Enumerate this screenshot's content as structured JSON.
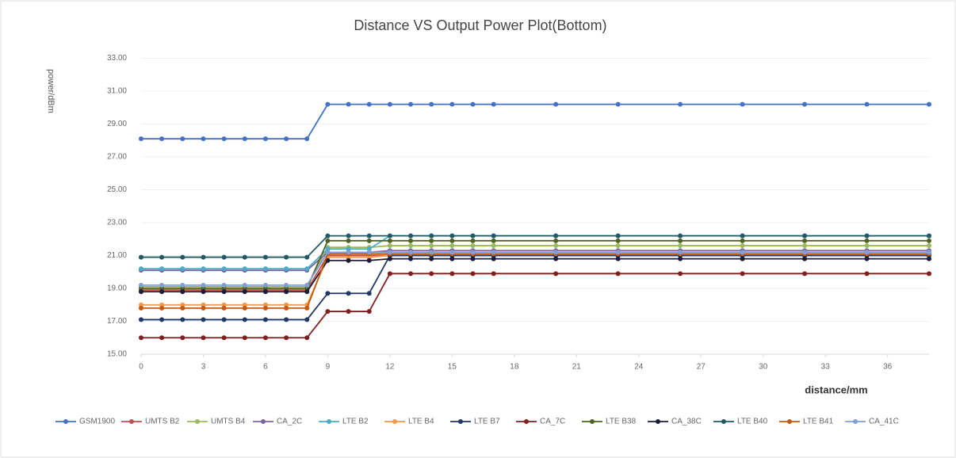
{
  "chart_data": {
    "type": "line",
    "title": "Distance VS Output Power Plot(Bottom)",
    "xlabel": "distance/mm",
    "ylabel": "power/dBm",
    "x": [
      0,
      1,
      2,
      3,
      4,
      5,
      6,
      7,
      8,
      9,
      10,
      11,
      12,
      13,
      14,
      15,
      16,
      17,
      20,
      23,
      26,
      29,
      32,
      35,
      38
    ],
    "xlim": [
      0,
      38
    ],
    "xticks": [
      0,
      3,
      6,
      9,
      12,
      15,
      18,
      21,
      24,
      27,
      30,
      33,
      36
    ],
    "ylim": [
      15,
      33
    ],
    "yticks": [
      {
        "value": 15,
        "label": "15.00"
      },
      {
        "value": 17,
        "label": "17.00"
      },
      {
        "value": 19,
        "label": "19.00"
      },
      {
        "value": 21,
        "label": "21.00"
      },
      {
        "value": 23,
        "label": "23.00"
      },
      {
        "value": 25,
        "label": "25.00"
      },
      {
        "value": 27,
        "label": "27.00"
      },
      {
        "value": 29,
        "label": "29.00"
      },
      {
        "value": 31,
        "label": "31.00"
      },
      {
        "value": 33,
        "label": "33.00"
      }
    ],
    "grid": true,
    "legend": "bottom",
    "series": [
      {
        "name": "GSM1900",
        "color": "#4472c4",
        "values": [
          28.1,
          28.1,
          28.1,
          28.1,
          28.1,
          28.1,
          28.1,
          28.1,
          28.1,
          30.2,
          30.2,
          30.2,
          30.2,
          30.2,
          30.2,
          30.2,
          30.2,
          30.2,
          30.2,
          30.2,
          30.2,
          30.2,
          30.2,
          30.2,
          30.2
        ]
      },
      {
        "name": "UMTS B2",
        "color": "#c0504d",
        "values": [
          18.9,
          18.9,
          18.9,
          18.9,
          18.9,
          18.9,
          18.9,
          18.9,
          18.9,
          21.0,
          21.0,
          21.0,
          21.0,
          21.0,
          21.0,
          21.0,
          21.0,
          21.0,
          21.0,
          21.0,
          21.0,
          21.0,
          21.0,
          21.0,
          21.0
        ]
      },
      {
        "name": "UMTS B4",
        "color": "#9bbb59",
        "values": [
          19.1,
          19.1,
          19.1,
          19.1,
          19.1,
          19.1,
          19.1,
          19.1,
          19.1,
          21.5,
          21.5,
          21.5,
          21.6,
          21.6,
          21.6,
          21.6,
          21.6,
          21.6,
          21.6,
          21.6,
          21.6,
          21.6,
          21.6,
          21.6,
          21.6
        ]
      },
      {
        "name": "CA_2C",
        "color": "#8064a2",
        "values": [
          20.1,
          20.1,
          20.1,
          20.1,
          20.1,
          20.1,
          20.1,
          20.1,
          20.1,
          21.2,
          21.2,
          21.2,
          21.3,
          21.3,
          21.3,
          21.3,
          21.3,
          21.3,
          21.3,
          21.3,
          21.3,
          21.3,
          21.3,
          21.3,
          21.3
        ]
      },
      {
        "name": "LTE B2",
        "color": "#4bacc6",
        "values": [
          20.2,
          20.2,
          20.2,
          20.2,
          20.2,
          20.2,
          20.2,
          20.2,
          20.2,
          21.4,
          21.4,
          21.4,
          22.2,
          22.2,
          22.2,
          22.2,
          22.2,
          22.2,
          22.2,
          22.2,
          22.2,
          22.2,
          22.2,
          22.2,
          22.2
        ]
      },
      {
        "name": "LTE B4",
        "color": "#f79646",
        "values": [
          18.0,
          18.0,
          18.0,
          18.0,
          18.0,
          18.0,
          18.0,
          18.0,
          18.0,
          20.9,
          20.9,
          20.9,
          21.0,
          21.0,
          21.0,
          21.0,
          21.0,
          21.0,
          21.0,
          21.0,
          21.0,
          21.0,
          21.0,
          21.0,
          21.0
        ]
      },
      {
        "name": "LTE B7",
        "color": "#1f3864",
        "values": [
          17.1,
          17.1,
          17.1,
          17.1,
          17.1,
          17.1,
          17.1,
          17.1,
          17.1,
          18.7,
          18.7,
          18.7,
          21.0,
          21.0,
          21.0,
          21.0,
          21.0,
          21.0,
          21.0,
          21.0,
          21.0,
          21.0,
          21.0,
          21.0,
          21.0
        ]
      },
      {
        "name": "CA_7C",
        "color": "#7f1f1f",
        "values": [
          16.0,
          16.0,
          16.0,
          16.0,
          16.0,
          16.0,
          16.0,
          16.0,
          16.0,
          17.6,
          17.6,
          17.6,
          19.9,
          19.9,
          19.9,
          19.9,
          19.9,
          19.9,
          19.9,
          19.9,
          19.9,
          19.9,
          19.9,
          19.9,
          19.9
        ]
      },
      {
        "name": "LTE B38",
        "color": "#4f6228",
        "values": [
          19.0,
          19.0,
          19.0,
          19.0,
          19.0,
          19.0,
          19.0,
          19.0,
          19.0,
          21.9,
          21.9,
          21.9,
          21.9,
          21.9,
          21.9,
          21.9,
          21.9,
          21.9,
          21.9,
          21.9,
          21.9,
          21.9,
          21.9,
          21.9,
          21.9
        ]
      },
      {
        "name": "CA_38C",
        "color": "#1d1d3a",
        "values": [
          18.8,
          18.8,
          18.8,
          18.8,
          18.8,
          18.8,
          18.8,
          18.8,
          18.8,
          20.7,
          20.7,
          20.7,
          20.8,
          20.8,
          20.8,
          20.8,
          20.8,
          20.8,
          20.8,
          20.8,
          20.8,
          20.8,
          20.8,
          20.8,
          20.8
        ]
      },
      {
        "name": "LTE B40",
        "color": "#215967",
        "values": [
          20.9,
          20.9,
          20.9,
          20.9,
          20.9,
          20.9,
          20.9,
          20.9,
          20.9,
          22.2,
          22.2,
          22.2,
          22.2,
          22.2,
          22.2,
          22.2,
          22.2,
          22.2,
          22.2,
          22.2,
          22.2,
          22.2,
          22.2,
          22.2,
          22.2
        ]
      },
      {
        "name": "LTE B41",
        "color": "#c55a11",
        "values": [
          17.8,
          17.8,
          17.8,
          17.8,
          17.8,
          17.8,
          17.8,
          17.8,
          17.8,
          21.1,
          21.1,
          21.1,
          21.1,
          21.1,
          21.1,
          21.1,
          21.1,
          21.1,
          21.1,
          21.1,
          21.1,
          21.1,
          21.1,
          21.1,
          21.1
        ]
      },
      {
        "name": "CA_41C",
        "color": "#7f9fd6",
        "values": [
          19.2,
          19.2,
          19.2,
          19.2,
          19.2,
          19.2,
          19.2,
          19.2,
          19.2,
          21.2,
          21.2,
          21.2,
          21.2,
          21.2,
          21.2,
          21.2,
          21.2,
          21.2,
          21.2,
          21.2,
          21.2,
          21.2,
          21.2,
          21.2,
          21.2
        ]
      }
    ]
  }
}
